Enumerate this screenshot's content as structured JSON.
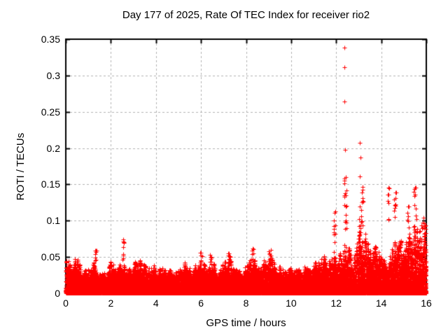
{
  "chart_data": {
    "type": "scatter",
    "title": "Day 177 of 2025, Rate Of TEC Index for receiver rio2",
    "xlabel": "GPS time / hours",
    "ylabel": "ROTI / TECUs",
    "series_name": "ROTI",
    "xlim": [
      0,
      16
    ],
    "ylim": [
      0,
      0.35
    ],
    "xticks": [
      0,
      2,
      4,
      6,
      8,
      10,
      12,
      14,
      16
    ],
    "xtick_labels": [
      "0",
      "2",
      "4",
      "6",
      "8",
      "10",
      "12",
      "14",
      "16"
    ],
    "yticks": [
      0,
      0.05,
      0.1,
      0.15,
      0.2,
      0.25,
      0.3,
      0.35
    ],
    "ytick_labels": [
      "0",
      "0.05",
      "0.1",
      "0.15",
      "0.2",
      "0.25",
      "0.3",
      "0.35"
    ],
    "grid": true,
    "legend": "none",
    "marker": {
      "glyph": "plus",
      "size": 7,
      "color": "#ff0000"
    },
    "grid_color": "#b0b0b0",
    "axis_color": "#000000",
    "background_color": "#ffffff",
    "envelope": {
      "description": "approximate upper bound of the dense ROTI noise cloud vs GPS hour",
      "h_start": 0,
      "h_step": 0.25,
      "max_roti": [
        0.05,
        0.046,
        0.05,
        0.03,
        0.036,
        0.044,
        0.032,
        0.028,
        0.045,
        0.034,
        0.046,
        0.03,
        0.046,
        0.048,
        0.04,
        0.034,
        0.042,
        0.036,
        0.035,
        0.03,
        0.032,
        0.046,
        0.035,
        0.04,
        0.048,
        0.035,
        0.046,
        0.03,
        0.044,
        0.052,
        0.034,
        0.032,
        0.04,
        0.055,
        0.04,
        0.044,
        0.058,
        0.044,
        0.04,
        0.032,
        0.036,
        0.033,
        0.04,
        0.036,
        0.042,
        0.046,
        0.052,
        0.048,
        0.06,
        0.055,
        0.07,
        0.048,
        0.085,
        0.088,
        0.06,
        0.068,
        0.055,
        0.042,
        0.07,
        0.085,
        0.065,
        0.085,
        0.095,
        0.09,
        0.095
      ]
    },
    "clusters_format": "[hour_center, hour_halfwidth, roti_min, roti_max, n_points]",
    "clusters": [
      [
        1.33,
        0.04,
        0.044,
        0.066,
        8
      ],
      [
        2.55,
        0.04,
        0.044,
        0.075,
        9
      ],
      [
        6.02,
        0.05,
        0.042,
        0.058,
        6
      ],
      [
        6.45,
        0.05,
        0.042,
        0.056,
        5
      ],
      [
        7.25,
        0.08,
        0.04,
        0.06,
        10
      ],
      [
        8.27,
        0.06,
        0.04,
        0.062,
        8
      ],
      [
        9.05,
        0.06,
        0.042,
        0.063,
        8
      ],
      [
        11.93,
        0.04,
        0.055,
        0.112,
        10
      ],
      [
        12.4,
        0.06,
        0.05,
        0.158,
        22
      ],
      [
        13.1,
        0.1,
        0.05,
        0.158,
        26
      ],
      [
        14.32,
        0.04,
        0.1,
        0.148,
        6
      ],
      [
        14.62,
        0.05,
        0.09,
        0.14,
        9
      ],
      [
        15.18,
        0.05,
        0.088,
        0.12,
        6
      ],
      [
        15.5,
        0.06,
        0.085,
        0.147,
        10
      ],
      [
        15.85,
        0.1,
        0.06,
        0.112,
        14
      ]
    ],
    "outliers_format": "[hour, roti]",
    "outliers": [
      [
        12.37,
        0.338
      ],
      [
        12.37,
        0.311
      ],
      [
        12.38,
        0.264
      ],
      [
        12.39,
        0.198
      ],
      [
        12.42,
        0.16
      ],
      [
        13.06,
        0.207
      ],
      [
        13.07,
        0.187
      ],
      [
        13.05,
        0.161
      ],
      [
        11.95,
        0.113
      ],
      [
        14.31,
        0.146
      ],
      [
        14.33,
        0.136
      ],
      [
        14.63,
        0.139
      ],
      [
        15.23,
        0.12
      ],
      [
        15.44,
        0.14
      ],
      [
        15.54,
        0.146
      ]
    ],
    "generator": {
      "seed": 42,
      "n_base": 18000,
      "n_floor": 3000,
      "exponent": 2.0
    }
  }
}
